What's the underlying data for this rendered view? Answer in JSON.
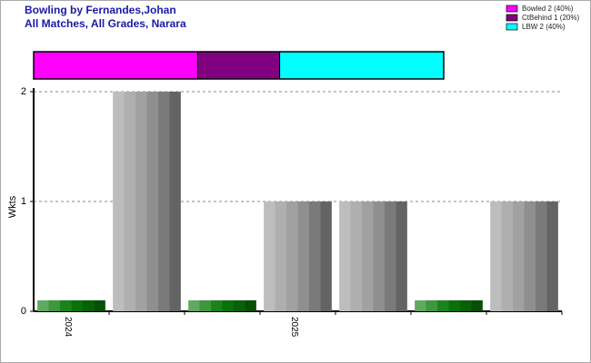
{
  "chart_data": {
    "type": "bar",
    "title": "Bowling by Fernandes,Johan",
    "subtitle": "All Matches, All Grades, Narara",
    "y_label": "Wkts",
    "categories": [
      "2024",
      null,
      null,
      "2025",
      null,
      null,
      null
    ],
    "values": [
      0.1,
      2,
      0.1,
      1,
      1,
      0.1,
      1
    ],
    "colors": [
      "#0b7a0b",
      "#9a9a9a",
      "#0b7a0b",
      "#9a9a9a",
      "#9a9a9a",
      "#0b7a0b",
      "#9a9a9a"
    ],
    "ylim": [
      0,
      2
    ],
    "yticks": [
      0,
      1,
      2
    ],
    "grid": true,
    "breakdown": [
      {
        "name": "Bowled 2 (40%)",
        "color": "#ff00ff",
        "value": 2
      },
      {
        "name": "CtBehind 1 (20%)",
        "color": "#800080",
        "value": 1
      },
      {
        "name": "LBW 2 (40%)",
        "color": "#00ffff",
        "value": 2
      }
    ]
  }
}
